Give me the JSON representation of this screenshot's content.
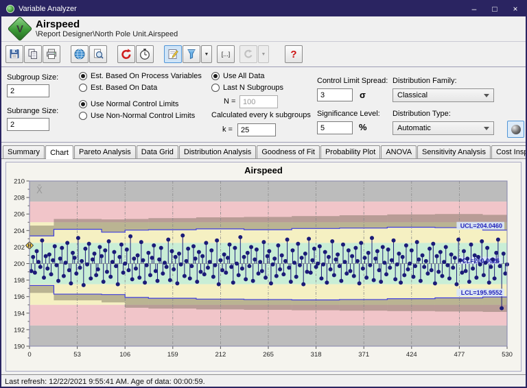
{
  "window": {
    "title": "Variable Analyzer",
    "controls": {
      "minimize": "–",
      "maximize": "□",
      "close": "×"
    }
  },
  "header": {
    "title": "Airspeed",
    "breadcrumb": "\\Report Designer\\North Pole Unit.Airspeed",
    "logo_letter": "V"
  },
  "toolbar": {
    "icons": [
      "save",
      "copy",
      "print",
      "web-refresh",
      "print-preview",
      "refresh",
      "timer",
      "edit-notes",
      "filter",
      "filter-dropdown",
      "range-brackets",
      "undo",
      "undo-dropdown",
      "help"
    ],
    "brackets_glyph": "[...]",
    "dropdown_glyph": "▼",
    "help_glyph": "?"
  },
  "controls": {
    "subgroup_size": {
      "label": "Subgroup Size:",
      "value": "2"
    },
    "subrange_size": {
      "label": "Subrange Size:",
      "value": "2"
    },
    "estimation": {
      "options": [
        "Est. Based On Process Variables",
        "Est. Based On Data"
      ],
      "selected": 0
    },
    "limits": {
      "options": [
        "Use Normal Control Limits",
        "Use Non-Normal Control Limits"
      ],
      "selected": 0
    },
    "data_scope": {
      "options": [
        "Use All Data",
        "Last N Subgroups"
      ],
      "selected": 0,
      "n_label": "N =",
      "n_value": "100"
    },
    "calc": {
      "label": "Calculated every k subgroups",
      "k_label": "k =",
      "k_value": "25"
    },
    "spread": {
      "label": "Control Limit Spread:",
      "value": "3",
      "unit": "σ"
    },
    "significance": {
      "label": "Significance Level:",
      "value": "5",
      "unit": "%"
    },
    "dist_family": {
      "label": "Distribution Family:",
      "value": "Classical"
    },
    "dist_type": {
      "label": "Distribution Type:",
      "value": "Automatic"
    }
  },
  "tabs": {
    "items": [
      "Summary",
      "Chart",
      "Pareto Analysis",
      "Data Grid",
      "Distribution Analysis",
      "Goodness of Fit",
      "Probability Plot",
      "ANOVA",
      "Sensitivity Analysis",
      "Cost Inspector",
      "Events"
    ],
    "active": "Chart"
  },
  "status": {
    "text": "Last refresh: 12/22/2021 9:55:41 AM.  Age of data: 00:00:59."
  },
  "chart_data": {
    "type": "scatter",
    "subtype": "individuals-control-chart",
    "title": "Airspeed",
    "xlabel": "",
    "ylabel": "",
    "xlim": [
      0,
      530
    ],
    "ylim": [
      190,
      210
    ],
    "xticks": [
      0,
      53,
      106,
      159,
      212,
      265,
      318,
      371,
      424,
      477,
      530
    ],
    "yticks": [
      190,
      192,
      194,
      196,
      198,
      200,
      202,
      204,
      206,
      208,
      210
    ],
    "grid": "vertical-dashed",
    "legend": "none",
    "center_line": 200.0,
    "ucl_label": "UCL=204.0460",
    "cl_label": "CL=200.0026",
    "lcl_label": "LCL=195.9552",
    "xbar_symbol": "X̄",
    "highlight": {
      "index": 0,
      "color": "#ffd23e",
      "glyph": "H"
    },
    "colors": {
      "band_gray": "#bcbcbc",
      "band_pink": "#f1c5c9",
      "band_yellow": "#f5f0c2",
      "band_green": "#c9eed6",
      "overlay": "rgba(116,106,88,0.45)",
      "limit": "#3c3ce0",
      "point": "#1b1b78",
      "center": "#9aa89a",
      "grid": "#8a8a8a",
      "label_bg": "#d9e6f8",
      "label_text": "#2121bb"
    },
    "bands": [
      {
        "lo": 207.5,
        "hi": 210,
        "color": "#bcbcbc"
      },
      {
        "lo": 205,
        "hi": 207.5,
        "color": "#f1c5c9"
      },
      {
        "lo": 202.5,
        "hi": 205,
        "color": "#f5f0c2"
      },
      {
        "lo": 197.5,
        "hi": 202.5,
        "color": "#c9eed6"
      },
      {
        "lo": 195,
        "hi": 197.5,
        "color": "#f5f0c2"
      },
      {
        "lo": 192.5,
        "hi": 195,
        "color": "#f1c5c9"
      },
      {
        "lo": 190,
        "hi": 192.5,
        "color": "#bcbcbc"
      }
    ],
    "limit_segments": [
      {
        "x0": 0,
        "x1": 27,
        "ucl": 203.35,
        "lcl": 197.35,
        "outer_ucl": 204.6,
        "outer_lcl": 196.45
      },
      {
        "x0": 27,
        "x1": 80,
        "ucl": 204.15,
        "lcl": 196.3,
        "outer_ucl": 205.4,
        "outer_lcl": 195.55
      },
      {
        "x0": 80,
        "x1": 106,
        "ucl": 203.8,
        "lcl": 196.25,
        "outer_ucl": 205.35,
        "outer_lcl": 195.3
      },
      {
        "x0": 106,
        "x1": 132,
        "ucl": 204.05,
        "lcl": 195.9,
        "outer_ucl": 205.4,
        "outer_lcl": 194.65
      },
      {
        "x0": 132,
        "x1": 185,
        "ucl": 204.1,
        "lcl": 195.8,
        "outer_ucl": 205.5,
        "outer_lcl": 194.55
      },
      {
        "x0": 185,
        "x1": 238,
        "ucl": 204.2,
        "lcl": 195.7,
        "outer_ucl": 205.6,
        "outer_lcl": 194.45
      },
      {
        "x0": 238,
        "x1": 291,
        "ucl": 204.1,
        "lcl": 195.65,
        "outer_ucl": 205.65,
        "outer_lcl": 194.4
      },
      {
        "x0": 291,
        "x1": 344,
        "ucl": 204.25,
        "lcl": 195.6,
        "outer_ucl": 205.75,
        "outer_lcl": 194.35
      },
      {
        "x0": 344,
        "x1": 397,
        "ucl": 204.3,
        "lcl": 195.65,
        "outer_ucl": 205.85,
        "outer_lcl": 194.3
      },
      {
        "x0": 397,
        "x1": 450,
        "ucl": 204.4,
        "lcl": 195.75,
        "outer_ucl": 205.95,
        "outer_lcl": 194.25
      },
      {
        "x0": 450,
        "x1": 503,
        "ucl": 204.35,
        "lcl": 195.85,
        "outer_ucl": 206.0,
        "outer_lcl": 194.2
      },
      {
        "x0": 503,
        "x1": 530,
        "ucl": 204.05,
        "lcl": 195.96,
        "outer_ucl": 205.9,
        "outer_lcl": 194.15
      }
    ],
    "x_start": 0,
    "x_step": 2,
    "values": [
      202.2,
      199.1,
      200.8,
      198.9,
      201.5,
      200.2,
      199.6,
      202.8,
      198.3,
      200.9,
      199.4,
      201.1,
      198.7,
      200.4,
      202.1,
      199.8,
      197.9,
      200.6,
      201.9,
      198.5,
      200.1,
      202.5,
      199.2,
      197.6,
      201.3,
      200.7,
      198.8,
      203.1,
      199.5,
      200.3,
      197.4,
      201.8,
      199.9,
      202.4,
      198.2,
      200.5,
      201.2,
      198.6,
      199.3,
      202.0,
      200.9,
      197.8,
      201.6,
      199.0,
      202.7,
      198.4,
      200.2,
      201.4,
      199.7,
      197.5,
      200.8,
      202.3,
      198.9,
      200.0,
      201.7,
      199.2,
      203.3,
      198.1,
      200.6,
      199.4,
      201.0,
      198.3,
      202.6,
      200.4,
      197.7,
      199.8,
      201.3,
      198.6,
      200.7,
      202.2,
      199.1,
      197.9,
      200.5,
      201.9,
      198.8,
      200.1,
      199.6,
      202.9,
      198.0,
      201.5,
      199.3,
      200.8,
      197.6,
      201.2,
      199.9,
      203.4,
      198.5,
      200.3,
      201.8,
      198.2,
      199.7,
      202.1,
      200.6,
      197.8,
      201.4,
      199.0,
      200.9,
      198.7,
      202.5,
      199.5,
      200.2,
      201.6,
      198.4,
      199.8,
      202.8,
      197.5,
      200.4,
      199.2,
      201.1,
      198.9,
      200.7,
      202.3,
      199.6,
      197.7,
      201.9,
      200.0,
      198.6,
      203.2,
      199.4,
      200.8,
      198.1,
      201.3,
      199.7,
      202.0,
      197.9,
      200.5,
      201.7,
      198.8,
      200.2,
      199.1,
      202.6,
      198.3,
      200.9,
      201.5,
      197.6,
      199.9,
      200.6,
      198.5,
      202.2,
      199.3,
      201.0,
      198.7,
      200.3,
      202.9,
      199.5,
      197.8,
      201.6,
      200.1,
      198.4,
      202.4,
      199.8,
      200.7,
      197.5,
      201.2,
      199.0,
      203.0,
      198.9,
      200.4,
      201.8,
      199.6,
      200.0,
      202.1,
      198.2,
      199.9,
      201.4,
      197.7,
      200.8,
      199.3,
      202.7,
      198.6,
      200.5,
      201.1,
      199.7,
      197.9,
      202.3,
      200.2,
      198.8,
      201.6,
      199.1,
      200.9,
      198.5,
      201.9,
      200.3,
      197.6,
      202.5,
      199.4,
      200.7,
      198.3,
      201.3,
      199.8,
      203.1,
      198.0,
      200.6,
      201.5,
      199.2,
      197.8,
      202.0,
      200.1,
      198.7,
      201.7,
      199.5,
      200.4,
      202.8,
      198.1,
      199.9,
      201.2,
      197.7,
      200.8,
      198.6,
      202.2,
      199.3,
      200.0,
      201.6,
      198.4,
      199.7,
      202.6,
      200.5,
      197.9,
      201.0,
      199.6,
      200.3,
      198.8,
      201.8,
      199.2,
      202.4,
      197.6,
      200.9,
      199.0,
      201.4,
      198.5,
      200.2,
      202.0,
      199.8,
      198.2,
      201.1,
      199.5,
      200.7,
      197.5,
      202.9,
      200.4,
      198.9,
      201.5,
      199.1,
      200.6,
      197.8,
      202.3,
      199.4,
      201.0,
      198.3,
      200.8,
      199.9,
      202.7,
      198.6,
      200.1,
      201.9,
      197.7,
      199.6,
      200.5,
      198.2,
      201.3,
      202.9,
      199.7,
      194.6,
      201.2,
      198.8,
      199.9
    ]
  }
}
